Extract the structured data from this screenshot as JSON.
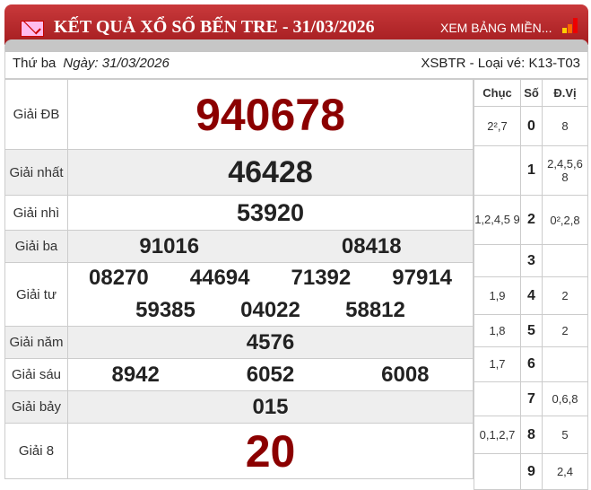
{
  "header": {
    "title": "KẾT QUẢ XỔ SỐ BẾN TRE - 31/03/2026",
    "link": "XEM BẢNG MIỀN...",
    "icons": [
      "mail-icon",
      "bar-chart-icon"
    ]
  },
  "info": {
    "day": "Thứ ba",
    "date": "Ngày: 31/03/2026",
    "code": "XSBTR - Loại vé: K13-T03"
  },
  "prizes": [
    {
      "label": "Giải ĐB",
      "numbers": [
        "940678"
      ]
    },
    {
      "label": "Giải nhất",
      "numbers": [
        "46428"
      ]
    },
    {
      "label": "Giải nhì",
      "numbers": [
        "53920"
      ]
    },
    {
      "label": "Giải ba",
      "numbers": [
        "91016",
        "08418"
      ]
    },
    {
      "label": "Giải tư",
      "numbers": [
        "08270",
        "44694",
        "71392",
        "97914",
        "59385",
        "04022",
        "58812"
      ]
    },
    {
      "label": "Giải năm",
      "numbers": [
        "4576"
      ]
    },
    {
      "label": "Giải sáu",
      "numbers": [
        "8942",
        "6052",
        "6008"
      ]
    },
    {
      "label": "Giải bảy",
      "numbers": [
        "015"
      ]
    },
    {
      "label": "Giải 8",
      "numbers": [
        "20"
      ]
    }
  ],
  "loto": {
    "headers": [
      "Chục",
      "Số",
      "Đ.Vị"
    ],
    "rows": [
      {
        "chuc": "2²,7",
        "so": "0",
        "dv": "8"
      },
      {
        "chuc": "",
        "so": "1",
        "dv": "2,4,5,6 8"
      },
      {
        "chuc": "1,2,4,5 9",
        "so": "2",
        "dv": "0²,2,8"
      },
      {
        "chuc": "",
        "so": "3",
        "dv": ""
      },
      {
        "chuc": "1,9",
        "so": "4",
        "dv": "2"
      },
      {
        "chuc": "1,8",
        "so": "5",
        "dv": "2"
      },
      {
        "chuc": "1,7",
        "so": "6",
        "dv": ""
      },
      {
        "chuc": "",
        "so": "7",
        "dv": "0,6,8"
      },
      {
        "chuc": "0,1,2,7",
        "so": "8",
        "dv": "5"
      },
      {
        "chuc": "",
        "so": "9",
        "dv": "2,4"
      }
    ]
  }
}
